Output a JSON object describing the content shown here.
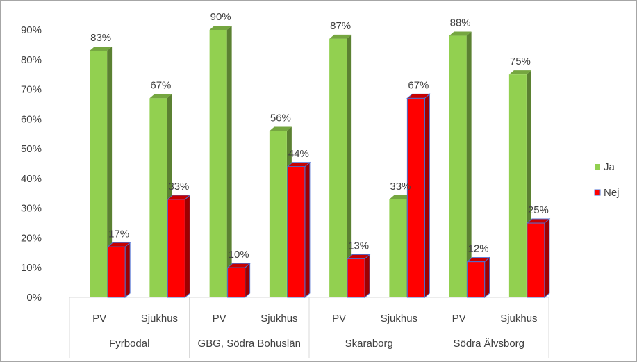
{
  "chart_data": {
    "type": "bar",
    "groups": [
      "Fyrbodal",
      "GBG, Södra Bohuslän",
      "Skaraborg",
      "Södra Älvsborg"
    ],
    "categories": [
      "PV",
      "Sjukhus",
      "PV",
      "Sjukhus",
      "PV",
      "Sjukhus",
      "PV",
      "Sjukhus"
    ],
    "series": [
      {
        "name": "Ja",
        "color": "#92d050",
        "values": [
          83,
          67,
          90,
          56,
          87,
          33,
          88,
          75
        ],
        "labels": [
          "83%",
          "67%",
          "90%",
          "56%",
          "87%",
          "33%",
          "88%",
          "75%"
        ]
      },
      {
        "name": "Nej",
        "color": "#ff0000",
        "values": [
          17,
          33,
          10,
          44,
          13,
          67,
          12,
          25
        ],
        "labels": [
          "17%",
          "33%",
          "10%",
          "44%",
          "13%",
          "67%",
          "12%",
          "25%"
        ]
      }
    ],
    "yticks": [
      "0%",
      "10%",
      "20%",
      "30%",
      "40%",
      "50%",
      "60%",
      "70%",
      "80%",
      "90%"
    ],
    "ylim": [
      0,
      90
    ],
    "legend_position": "right",
    "grid": false,
    "style": "3d-column"
  }
}
